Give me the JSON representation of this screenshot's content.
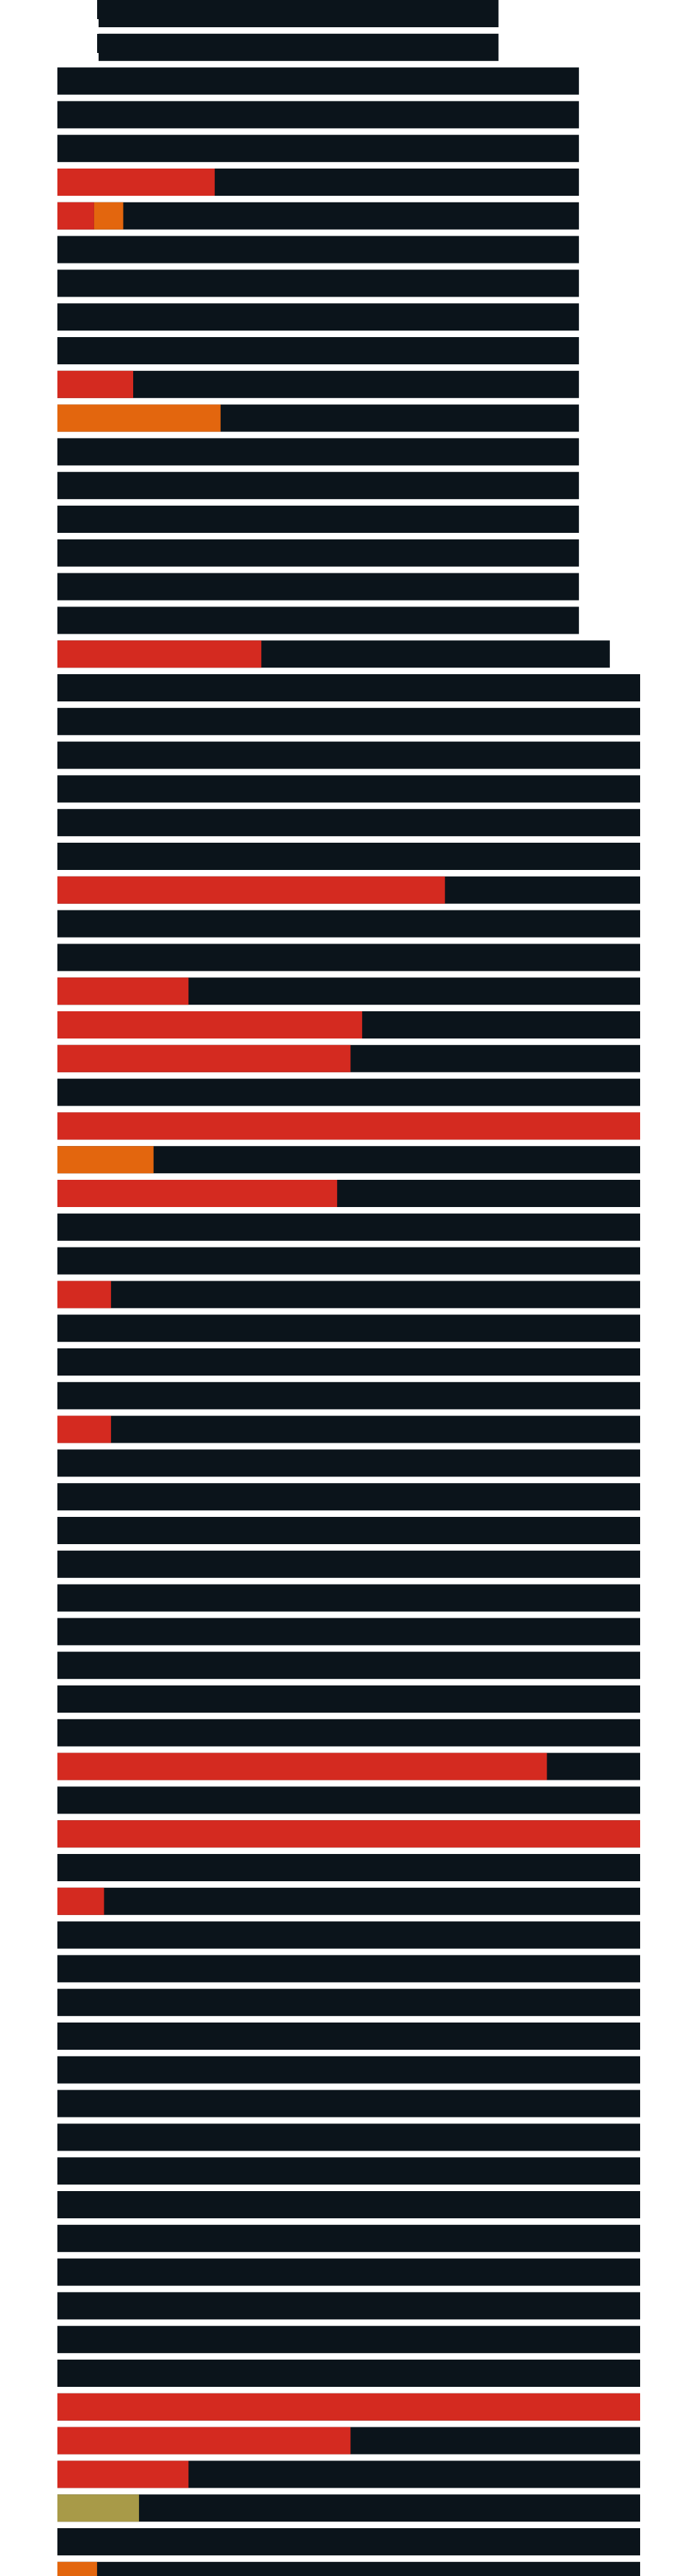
{
  "chart_data": {
    "type": "bar",
    "orientation": "horizontal",
    "stacked": true,
    "title": "",
    "xlabel": "",
    "ylabel": "",
    "xlim": [
      0,
      1
    ],
    "grid": false,
    "legend": "none",
    "colors": {
      "track": "#0b141b",
      "red": "#d42a20",
      "orange": "#e3660e",
      "olive": "#a89a48",
      "separator": "#e9edf2"
    },
    "rows": [
      {
        "width": 0.757,
        "segments": []
      },
      {
        "width": 0.757,
        "segments": []
      },
      {
        "width": 0.895,
        "segments": []
      },
      {
        "width": 0.895,
        "segments": []
      },
      {
        "width": 0.895,
        "segments": []
      },
      {
        "width": 0.895,
        "segments": [
          {
            "color": "red",
            "value": 0.27
          }
        ]
      },
      {
        "width": 0.895,
        "segments": [
          {
            "color": "red",
            "value": 0.063
          },
          {
            "color": "orange",
            "value": 0.05
          }
        ]
      },
      {
        "width": 0.895,
        "segments": []
      },
      {
        "width": 0.895,
        "segments": []
      },
      {
        "width": 0.895,
        "segments": []
      },
      {
        "width": 0.895,
        "segments": []
      },
      {
        "width": 0.895,
        "segments": [
          {
            "color": "red",
            "value": 0.13
          }
        ]
      },
      {
        "width": 0.895,
        "segments": [
          {
            "color": "orange",
            "value": 0.28
          }
        ]
      },
      {
        "width": 0.895,
        "segments": []
      },
      {
        "width": 0.895,
        "segments": []
      },
      {
        "width": 0.895,
        "segments": []
      },
      {
        "width": 0.895,
        "segments": []
      },
      {
        "width": 0.895,
        "segments": []
      },
      {
        "width": 0.895,
        "segments": []
      },
      {
        "width": 0.948,
        "segments": [
          {
            "color": "red",
            "value": 0.35
          }
        ]
      },
      {
        "width": 1.0,
        "segments": []
      },
      {
        "width": 1.0,
        "segments": []
      },
      {
        "width": 1.0,
        "segments": []
      },
      {
        "width": 1.0,
        "segments": []
      },
      {
        "width": 1.0,
        "segments": []
      },
      {
        "width": 1.0,
        "segments": []
      },
      {
        "width": 1.0,
        "segments": [
          {
            "color": "red",
            "value": 0.665
          }
        ]
      },
      {
        "width": 1.0,
        "segments": []
      },
      {
        "width": 1.0,
        "segments": []
      },
      {
        "width": 1.0,
        "segments": [
          {
            "color": "red",
            "value": 0.225
          }
        ]
      },
      {
        "width": 1.0,
        "segments": [
          {
            "color": "red",
            "value": 0.523
          }
        ]
      },
      {
        "width": 1.0,
        "segments": [
          {
            "color": "red",
            "value": 0.503
          }
        ]
      },
      {
        "width": 1.0,
        "segments": []
      },
      {
        "width": 1.0,
        "segments": [
          {
            "color": "red",
            "value": 1.0
          }
        ]
      },
      {
        "width": 1.0,
        "segments": [
          {
            "color": "orange",
            "value": 0.165
          }
        ]
      },
      {
        "width": 1.0,
        "segments": [
          {
            "color": "red",
            "value": 0.48
          }
        ]
      },
      {
        "width": 1.0,
        "segments": []
      },
      {
        "width": 1.0,
        "segments": []
      },
      {
        "width": 1.0,
        "segments": [
          {
            "color": "red",
            "value": 0.092
          }
        ]
      },
      {
        "width": 1.0,
        "segments": []
      },
      {
        "width": 1.0,
        "segments": []
      },
      {
        "width": 1.0,
        "segments": []
      },
      {
        "width": 1.0,
        "segments": [
          {
            "color": "red",
            "value": 0.092
          }
        ]
      },
      {
        "width": 1.0,
        "segments": []
      },
      {
        "width": 1.0,
        "segments": []
      },
      {
        "width": 1.0,
        "segments": []
      },
      {
        "width": 1.0,
        "segments": []
      },
      {
        "width": 1.0,
        "segments": []
      },
      {
        "width": 1.0,
        "segments": []
      },
      {
        "width": 1.0,
        "segments": []
      },
      {
        "width": 1.0,
        "segments": []
      },
      {
        "width": 1.0,
        "segments": []
      },
      {
        "width": 1.0,
        "segments": [
          {
            "color": "red",
            "value": 0.84
          }
        ]
      },
      {
        "width": 1.0,
        "segments": []
      },
      {
        "width": 1.0,
        "segments": [
          {
            "color": "red",
            "value": 1.0
          }
        ]
      },
      {
        "width": 1.0,
        "segments": []
      },
      {
        "width": 1.0,
        "segments": [
          {
            "color": "red",
            "value": 0.08
          }
        ]
      },
      {
        "width": 1.0,
        "segments": []
      },
      {
        "width": 1.0,
        "segments": []
      },
      {
        "width": 1.0,
        "segments": []
      },
      {
        "width": 1.0,
        "segments": []
      },
      {
        "width": 1.0,
        "segments": []
      },
      {
        "width": 1.0,
        "segments": []
      },
      {
        "width": 1.0,
        "segments": []
      },
      {
        "width": 1.0,
        "segments": []
      },
      {
        "width": 1.0,
        "segments": []
      },
      {
        "width": 1.0,
        "segments": []
      },
      {
        "width": 1.0,
        "segments": []
      },
      {
        "width": 1.0,
        "segments": []
      },
      {
        "width": 1.0,
        "segments": []
      },
      {
        "width": 1.0,
        "segments": []
      },
      {
        "width": 1.0,
        "segments": [
          {
            "color": "red",
            "value": 1.0
          }
        ]
      },
      {
        "width": 1.0,
        "segments": [
          {
            "color": "red",
            "value": 0.503
          }
        ]
      },
      {
        "width": 1.0,
        "segments": [
          {
            "color": "red",
            "value": 0.225
          }
        ]
      },
      {
        "width": 1.0,
        "segments": [
          {
            "color": "olive",
            "value": 0.14
          }
        ]
      },
      {
        "width": 1.0,
        "segments": []
      },
      {
        "width": 1.0,
        "segments": [
          {
            "color": "orange",
            "value": 0.068
          }
        ]
      }
    ]
  }
}
